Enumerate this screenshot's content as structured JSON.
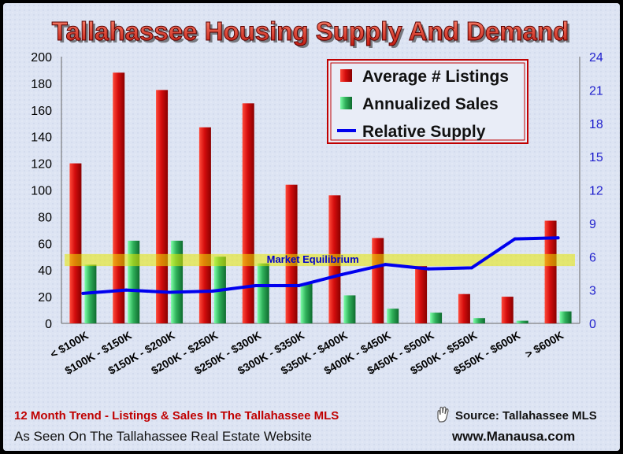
{
  "chart_data": {
    "type": "bar",
    "title": "Tallahassee Housing Supply And Demand",
    "categories": [
      "< $100K",
      "$100K - $150K",
      "$150K - $200K",
      "$200K - $250K",
      "$250K - $300K",
      "$300K - $350K",
      "$350K - $400K",
      "$400K - $450K",
      "$450K - $500K",
      "$500K - $550K",
      "$550K - $600K",
      "> $600K"
    ],
    "series": [
      {
        "name": "Average # Listings",
        "axis": "left",
        "type": "bar",
        "color": "#cc0000",
        "values": [
          120,
          188,
          175,
          147,
          165,
          104,
          96,
          64,
          43,
          22,
          20,
          77
        ]
      },
      {
        "name": "Annualized Sales",
        "axis": "left",
        "type": "bar",
        "color": "#2fb05a",
        "values": [
          44,
          62,
          62,
          50,
          45,
          30,
          21,
          11,
          8,
          4,
          2,
          9
        ]
      },
      {
        "name": "Relative Supply",
        "axis": "right",
        "type": "line",
        "color": "#0000ee",
        "values": [
          2.7,
          3.0,
          2.8,
          2.9,
          3.4,
          3.4,
          4.4,
          5.3,
          4.9,
          5.0,
          7.6,
          7.7
        ]
      }
    ],
    "yleft": {
      "lim": [
        0,
        200
      ],
      "ticks": [
        0,
        20,
        40,
        60,
        80,
        100,
        120,
        140,
        160,
        180,
        200
      ]
    },
    "yright": {
      "lim": [
        0,
        24
      ],
      "ticks": [
        0,
        3,
        6,
        9,
        12,
        15,
        18,
        21,
        24
      ]
    },
    "equilibrium_band": {
      "label": "Market Equilibrium",
      "from": 43,
      "to": 52
    },
    "legend_position": "top-right"
  },
  "footer": {
    "left": "12 Month Trend - Listings & Sales In The Tallahassee MLS",
    "source": "Source: Tallahassee MLS",
    "seen_on": "As Seen On The Tallahassee Real Estate Website",
    "website": "www.Manausa.com"
  },
  "colors": {
    "bar_listings": "#cc0000",
    "bar_sales": "#2fb05a",
    "line": "#0000ee",
    "band": "#e8e800",
    "title_red": "#e83a28"
  },
  "icons": {
    "hand": "pointing-hand-icon"
  }
}
